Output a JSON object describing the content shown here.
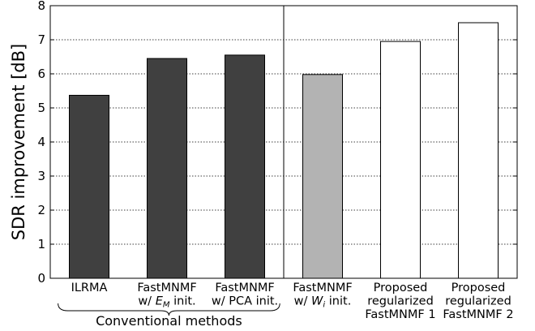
{
  "chart_data": {
    "type": "bar",
    "title": "",
    "xlabel": "",
    "ylabel": "SDR improvement [dB]",
    "ylim": [
      0,
      8
    ],
    "yticks": [
      0,
      1,
      2,
      3,
      4,
      5,
      6,
      7,
      8
    ],
    "grid": "horizontal dotted",
    "categories": [
      {
        "lines": [
          {
            "t": "ILRMA"
          }
        ],
        "value": 5.37,
        "color": "#404040"
      },
      {
        "lines": [
          {
            "t": "FastMNMF"
          },
          {
            "t": "w/ ",
            "it": "E",
            "sub": "M",
            "tail": " init."
          }
        ],
        "value": 6.45,
        "color": "#404040"
      },
      {
        "lines": [
          {
            "t": "FastMNMF"
          },
          {
            "t": "w/ PCA init."
          }
        ],
        "value": 6.55,
        "color": "#404040"
      },
      {
        "lines": [
          {
            "t": "FastMNMF"
          },
          {
            "t": "w/ ",
            "it": "W",
            "sub": "i",
            "tail": " init."
          }
        ],
        "value": 5.98,
        "color": "#b3b3b3"
      },
      {
        "lines": [
          {
            "t": "Proposed"
          },
          {
            "t": "regularized"
          },
          {
            "t": "FastMNMF 1"
          }
        ],
        "value": 6.95,
        "color": "#ffffff"
      },
      {
        "lines": [
          {
            "t": "Proposed"
          },
          {
            "t": "regularized"
          },
          {
            "t": "FastMNMF 2"
          }
        ],
        "value": 7.5,
        "color": "#ffffff"
      }
    ],
    "separator_after_index": 2,
    "group_label": {
      "text": "Conventional methods",
      "covers_indices": [
        0,
        1,
        2
      ]
    },
    "bar_edge_color": "#000000"
  }
}
